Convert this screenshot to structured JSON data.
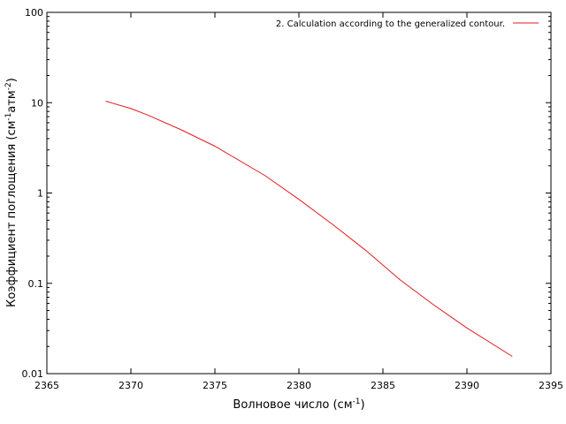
{
  "chart_data": {
    "type": "line",
    "title": "",
    "xlabel": {
      "main": "Волновое число (см",
      "sup": "-1",
      "close": ")"
    },
    "ylabel": {
      "part1": "Коэффициент поглощения (см",
      "sup1": "-1",
      "part2": "атм",
      "sup2": "-2",
      "close": ")"
    },
    "xlim": [
      2365,
      2395
    ],
    "ylim": [
      0.01,
      100
    ],
    "yscale": "log",
    "grid": false,
    "legend_position": "top-right",
    "x_ticks": [
      "2365",
      "2370",
      "2375",
      "2380",
      "2385",
      "2390",
      "2395"
    ],
    "y_ticks": [
      "0.01",
      "0.1",
      "1",
      "10",
      "100"
    ],
    "series": [
      {
        "name": "2. Calculation according to the generalized contour.",
        "color": "#e41a1c",
        "x": [
          2368.5,
          2370.0,
          2371.0,
          2373.0,
          2375.0,
          2378.0,
          2380.0,
          2382.0,
          2384.0,
          2386.0,
          2388.0,
          2390.0,
          2392.7
        ],
        "y": [
          10.4,
          8.6,
          7.3,
          5.0,
          3.3,
          1.55,
          0.85,
          0.45,
          0.23,
          0.11,
          0.058,
          0.032,
          0.0155
        ]
      }
    ]
  }
}
